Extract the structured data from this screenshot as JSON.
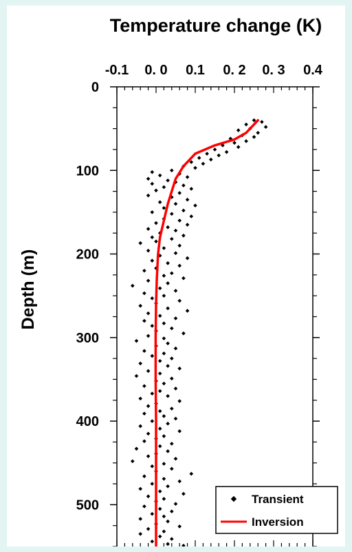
{
  "chart_data": {
    "type": "scatter",
    "title": "",
    "xlabel": "Temperature change (K)",
    "ylabel": "Depth (m)",
    "x_axis_position": "top",
    "x_tick_labels": [
      "-0.1",
      "0. 0",
      "0.1",
      "0. 2",
      "0. 3",
      "0.4"
    ],
    "x_tick_values": [
      -0.1,
      0.0,
      0.1,
      0.2,
      0.3,
      0.4
    ],
    "y_tick_labels": [
      "0",
      "100",
      "200",
      "300",
      "400",
      "500"
    ],
    "y_tick_values": [
      0,
      100,
      200,
      300,
      400,
      500
    ],
    "xlim": [
      -0.1,
      0.4
    ],
    "ylim": [
      0,
      550
    ],
    "y_inverted": true,
    "grid": false,
    "legend_position": "bottom-right",
    "series": [
      {
        "name": "Transient",
        "kind": "scatter",
        "marker": "diamond",
        "color": "#000000",
        "points": [
          [
            0.25,
            40
          ],
          [
            0.27,
            42
          ],
          [
            0.23,
            45
          ],
          [
            0.28,
            48
          ],
          [
            0.24,
            50
          ],
          [
            0.21,
            52
          ],
          [
            0.26,
            55
          ],
          [
            0.22,
            58
          ],
          [
            0.25,
            60
          ],
          [
            0.19,
            62
          ],
          [
            0.23,
            65
          ],
          [
            0.2,
            67
          ],
          [
            0.17,
            70
          ],
          [
            0.21,
            72
          ],
          [
            0.15,
            75
          ],
          [
            0.18,
            78
          ],
          [
            0.13,
            80
          ],
          [
            0.16,
            82
          ],
          [
            0.11,
            85
          ],
          [
            0.14,
            87
          ],
          [
            0.09,
            90
          ],
          [
            0.12,
            92
          ],
          [
            0.07,
            95
          ],
          [
            0.1,
            97
          ],
          [
            0.04,
            100
          ],
          [
            -0.01,
            102
          ],
          [
            0.06,
            104
          ],
          [
            0.01,
            106
          ],
          [
            0.08,
            108
          ],
          [
            -0.02,
            110
          ],
          [
            0.03,
            112
          ],
          [
            0.05,
            114
          ],
          [
            -0.01,
            116
          ],
          [
            0.07,
            118
          ],
          [
            0.02,
            120
          ],
          [
            0.09,
            122
          ],
          [
            0.0,
            124
          ],
          [
            0.06,
            127
          ],
          [
            -0.02,
            130
          ],
          [
            0.04,
            132
          ],
          [
            0.08,
            135
          ],
          [
            0.01,
            138
          ],
          [
            0.05,
            140
          ],
          [
            0.1,
            142
          ],
          [
            0.02,
            145
          ],
          [
            0.07,
            148
          ],
          [
            -0.01,
            150
          ],
          [
            0.04,
            152
          ],
          [
            0.09,
            155
          ],
          [
            0.02,
            158
          ],
          [
            0.06,
            160
          ],
          [
            0.0,
            163
          ],
          [
            0.08,
            165
          ],
          [
            0.03,
            168
          ],
          [
            -0.02,
            170
          ],
          [
            0.05,
            172
          ],
          [
            0.01,
            175
          ],
          [
            0.07,
            178
          ],
          [
            -0.01,
            180
          ],
          [
            0.04,
            182
          ],
          [
            0.0,
            185
          ],
          [
            -0.04,
            187
          ],
          [
            0.06,
            190
          ],
          [
            0.02,
            193
          ],
          [
            -0.02,
            196
          ],
          [
            0.05,
            199
          ],
          [
            0.01,
            202
          ],
          [
            0.08,
            205
          ],
          [
            -0.01,
            208
          ],
          [
            0.03,
            211
          ],
          [
            0.06,
            214
          ],
          [
            0.0,
            217
          ],
          [
            -0.03,
            220
          ],
          [
            0.04,
            223
          ],
          [
            0.02,
            226
          ],
          [
            0.07,
            229
          ],
          [
            -0.02,
            232
          ],
          [
            0.03,
            235
          ],
          [
            -0.06,
            238
          ],
          [
            0.01,
            241
          ],
          [
            0.05,
            244
          ],
          [
            -0.03,
            247
          ],
          [
            0.02,
            250
          ],
          [
            -0.01,
            253
          ],
          [
            0.06,
            256
          ],
          [
            0.0,
            259
          ],
          [
            -0.04,
            262
          ],
          [
            0.03,
            265
          ],
          [
            0.08,
            268
          ],
          [
            -0.02,
            271
          ],
          [
            0.01,
            274
          ],
          [
            0.05,
            277
          ],
          [
            -0.03,
            280
          ],
          [
            0.02,
            283
          ],
          [
            -0.01,
            286
          ],
          [
            0.04,
            289
          ],
          [
            0.0,
            292
          ],
          [
            0.07,
            295
          ],
          [
            -0.02,
            298
          ],
          [
            0.02,
            301
          ],
          [
            -0.05,
            304
          ],
          [
            0.03,
            307
          ],
          [
            0.0,
            310
          ],
          [
            0.05,
            313
          ],
          [
            -0.03,
            316
          ],
          [
            0.02,
            319
          ],
          [
            -0.01,
            322
          ],
          [
            0.04,
            325
          ],
          [
            0.01,
            328
          ],
          [
            -0.04,
            331
          ],
          [
            0.03,
            334
          ],
          [
            0.06,
            337
          ],
          [
            -0.02,
            340
          ],
          [
            0.01,
            343
          ],
          [
            -0.05,
            346
          ],
          [
            0.04,
            349
          ],
          [
            0.0,
            352
          ],
          [
            0.02,
            355
          ],
          [
            -0.03,
            358
          ],
          [
            0.05,
            361
          ],
          [
            0.01,
            364
          ],
          [
            -0.01,
            367
          ],
          [
            0.03,
            370
          ],
          [
            -0.04,
            373
          ],
          [
            0.06,
            376
          ],
          [
            0.0,
            379
          ],
          [
            -0.02,
            382
          ],
          [
            0.04,
            385
          ],
          [
            0.01,
            388
          ],
          [
            -0.03,
            391
          ],
          [
            0.02,
            394
          ],
          [
            0.05,
            397
          ],
          [
            -0.01,
            400
          ],
          [
            0.03,
            403
          ],
          [
            -0.04,
            406
          ],
          [
            0.01,
            409
          ],
          [
            0.06,
            412
          ],
          [
            -0.02,
            415
          ],
          [
            0.02,
            418
          ],
          [
            0.0,
            421
          ],
          [
            -0.03,
            424
          ],
          [
            0.04,
            427
          ],
          [
            0.01,
            430
          ],
          [
            -0.05,
            433
          ],
          [
            0.03,
            436
          ],
          [
            0.0,
            439
          ],
          [
            -0.02,
            442
          ],
          [
            0.05,
            445
          ],
          [
            -0.06,
            448
          ],
          [
            0.02,
            451
          ],
          [
            -0.01,
            454
          ],
          [
            0.04,
            457
          ],
          [
            0.0,
            460
          ],
          [
            0.09,
            463
          ],
          [
            -0.03,
            466
          ],
          [
            0.02,
            469
          ],
          [
            0.06,
            472
          ],
          [
            -0.01,
            475
          ],
          [
            0.03,
            478
          ],
          [
            -0.04,
            481
          ],
          [
            0.01,
            484
          ],
          [
            0.07,
            487
          ],
          [
            -0.02,
            490
          ],
          [
            0.02,
            493
          ],
          [
            0.0,
            496
          ],
          [
            0.05,
            499
          ],
          [
            -0.03,
            502
          ],
          [
            0.01,
            505
          ],
          [
            0.04,
            508
          ],
          [
            -0.01,
            511
          ],
          [
            0.02,
            514
          ],
          [
            -0.04,
            517
          ],
          [
            0.03,
            520
          ],
          [
            0.0,
            523
          ],
          [
            0.06,
            526
          ],
          [
            -0.02,
            529
          ],
          [
            0.02,
            532
          ],
          [
            -0.04,
            535
          ],
          [
            0.01,
            538
          ],
          [
            0.04,
            541
          ],
          [
            -0.01,
            544
          ],
          [
            0.03,
            547
          ],
          [
            0.07,
            549
          ]
        ]
      },
      {
        "name": "Inversion",
        "kind": "line",
        "color": "#ff0000",
        "points": [
          [
            0.26,
            40
          ],
          [
            0.23,
            55
          ],
          [
            0.2,
            63
          ],
          [
            0.15,
            70
          ],
          [
            0.1,
            80
          ],
          [
            0.07,
            95
          ],
          [
            0.05,
            110
          ],
          [
            0.04,
            125
          ],
          [
            0.03,
            140
          ],
          [
            0.02,
            160
          ],
          [
            0.01,
            180
          ],
          [
            0.005,
            200
          ],
          [
            0.002,
            230
          ],
          [
            0.0,
            260
          ],
          [
            -0.001,
            300
          ],
          [
            -0.001,
            350
          ],
          [
            0.0,
            400
          ],
          [
            0.0,
            450
          ],
          [
            0.0,
            500
          ],
          [
            0.0,
            550
          ]
        ]
      }
    ]
  }
}
